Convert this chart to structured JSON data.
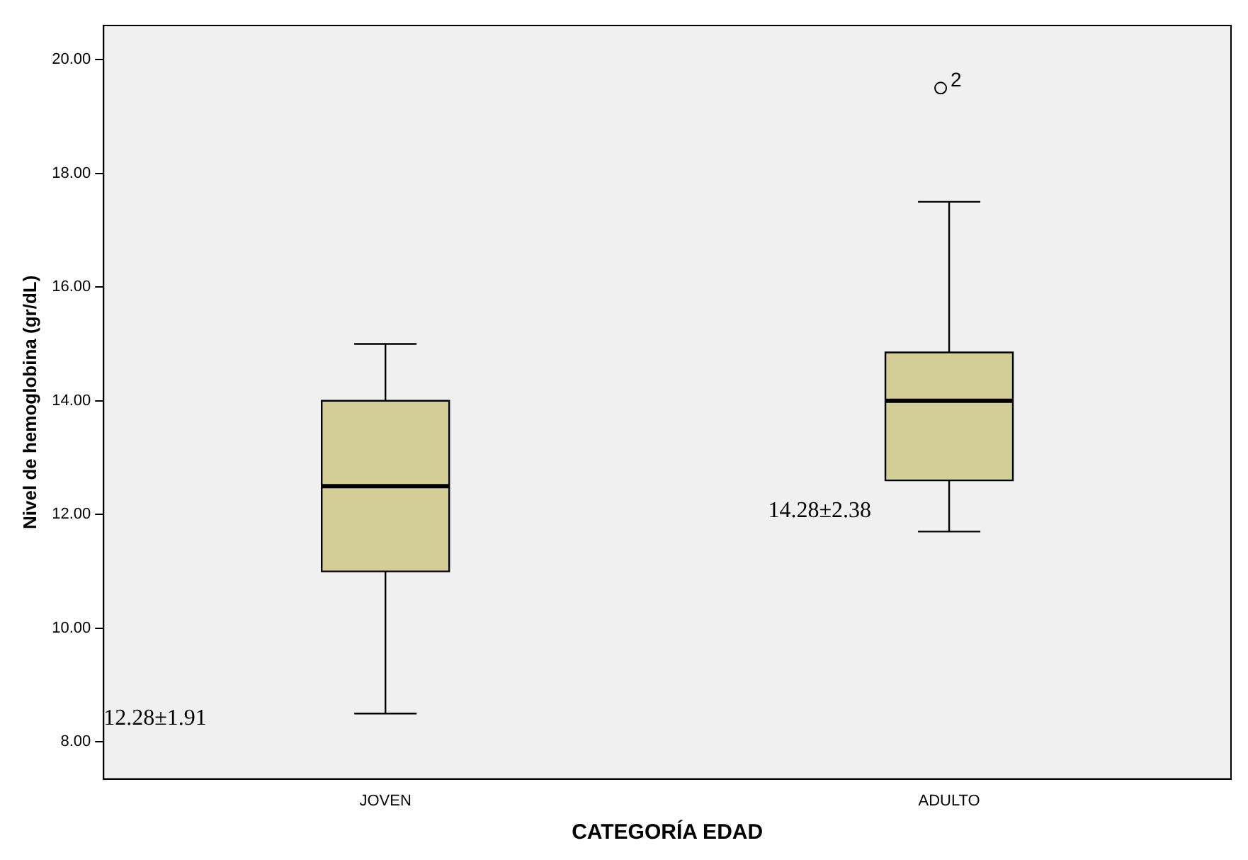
{
  "chart_data": {
    "type": "box",
    "xlabel": "CATEGORÍA EDAD",
    "ylabel": "Nivel de hemoglobina (gr/dL)",
    "categories": [
      "JOVEN",
      "ADULTO"
    ],
    "series": [
      {
        "color": "#d3cd98",
        "boxes": [
          {
            "low": 8.5,
            "q1": 11,
            "median": 12.5,
            "q3": 14,
            "high": 15
          },
          {
            "low": 11.7,
            "q1": 12.6,
            "median": 14,
            "q3": 14.85,
            "high": 17.5,
            "outliers": [
              19.5
            ]
          }
        ]
      }
    ],
    "ylim": [
      7.35,
      20.6
    ],
    "yticks": [
      {
        "value": 8,
        "label": "8.00"
      },
      {
        "value": 10,
        "label": "10.00"
      },
      {
        "value": 12,
        "label": "12.00"
      },
      {
        "value": 14,
        "label": "14.00"
      },
      {
        "value": 16,
        "label": "16.00"
      },
      {
        "value": 18,
        "label": "18.00"
      },
      {
        "value": 20,
        "label": "20.00"
      }
    ],
    "grid": false,
    "legend": false,
    "annotations": [
      "12.28±1.91",
      "14.28±2.38",
      "2"
    ]
  }
}
